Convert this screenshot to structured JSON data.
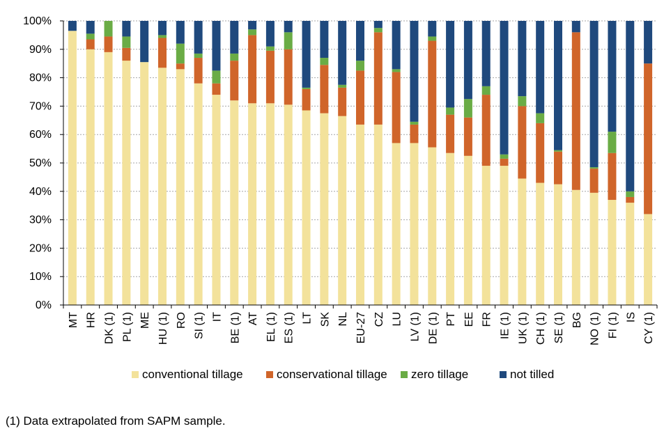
{
  "chart_data": {
    "type": "bar",
    "stacked": true,
    "categories": [
      "MT",
      "HR",
      "DK (1)",
      "PL (1)",
      "ME",
      "HU (1)",
      "RO",
      "SI (1)",
      "IT",
      "BE (1)",
      "AT",
      "EL (1)",
      "ES (1)",
      "LT",
      "SK",
      "NL",
      "EU-27",
      "CZ",
      "LU",
      "LV (1)",
      "DE (1)",
      "PT",
      "EE",
      "FR",
      "IE (1)",
      "UK (1)",
      "CH (1)",
      "SE (1)",
      "BG",
      "NO (1)",
      "FI (1)",
      "IS",
      "CY (1)"
    ],
    "series": [
      {
        "name": "conventional tillage",
        "color": "#f3e29b",
        "values": [
          96.5,
          90,
          89,
          86,
          85.5,
          83.5,
          83,
          78,
          74,
          72,
          71,
          71,
          70.5,
          68.5,
          67.5,
          66.5,
          63.5,
          63.5,
          57,
          57,
          55.5,
          53.5,
          52.5,
          49,
          49,
          44.5,
          43,
          42.5,
          40.5,
          39.5,
          37,
          36,
          32
        ]
      },
      {
        "name": "conservational tillage",
        "color": "#d0652a",
        "values": [
          0,
          3.5,
          5.5,
          4.5,
          0,
          10.5,
          2,
          9,
          4,
          14,
          24,
          18.5,
          19.5,
          7.5,
          17,
          10,
          19,
          32.5,
          25,
          6.5,
          37.5,
          13.5,
          13.5,
          25,
          2.5,
          25.5,
          21,
          11.5,
          55.5,
          8.5,
          16.5,
          2,
          53
        ]
      },
      {
        "name": "zero tillage",
        "color": "#6aac45",
        "values": [
          0,
          2,
          5.5,
          4,
          0,
          1,
          7,
          1.5,
          4.5,
          2.5,
          2,
          1.5,
          6,
          0.5,
          2.5,
          1,
          3.5,
          1.5,
          1,
          1,
          1.5,
          2.5,
          6.5,
          3,
          1.5,
          3.5,
          3.5,
          0.5,
          0,
          0.5,
          7.5,
          2,
          0
        ]
      },
      {
        "name": "not tilled",
        "color": "#1f497d",
        "values": [
          3.5,
          4.5,
          0,
          5.5,
          14.5,
          5,
          8,
          11.5,
          17.5,
          11.5,
          3,
          9,
          4,
          23.5,
          13,
          22.5,
          14,
          2.5,
          17,
          35.5,
          5.5,
          30.5,
          27.5,
          23,
          47,
          26.5,
          32.5,
          45.5,
          4,
          51.5,
          39,
          60,
          15
        ]
      }
    ],
    "ylim": [
      0,
      100
    ],
    "yticks": [
      "0%",
      "10%",
      "20%",
      "30%",
      "40%",
      "50%",
      "60%",
      "70%",
      "80%",
      "90%",
      "100%"
    ],
    "grid": true,
    "legend_position": "bottom"
  },
  "footnote": "(1) Data extrapolated from SAPM sample."
}
